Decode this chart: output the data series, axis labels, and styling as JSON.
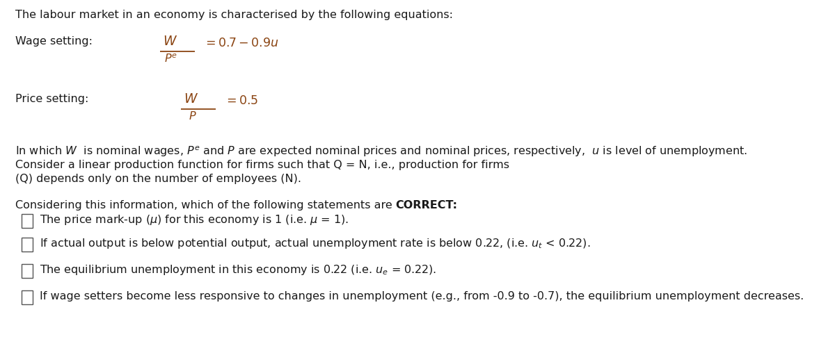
{
  "figsize": [
    12.0,
    4.98
  ],
  "dpi": 100,
  "bg_color": "#ffffff",
  "text_color": "#1a1a1a",
  "eq_color": "#8B4513",
  "font_size": 11.5,
  "title": "The labour market in an economy is characterised by the following equations:",
  "wage_label": "Wage setting:",
  "price_label": "Price setting:",
  "exp1": "In which $W$  is nominal wages, $P^e$ and $P$ are expected nominal prices and nominal prices, respectively,  $u$ is level of unemployment.",
  "exp2a": "Consider a linear production function for firms such that Q = N, i.e., production for firms",
  "exp2b": "(Q) depends only on the number of employees (N).",
  "q_normal": "Considering this information, which of the following statements are ",
  "q_bold": "CORRECT",
  "q_end": ":",
  "opt1": "The price mark-up ($\\mu$) for this economy is 1 (i.e. $\\mu$ = 1).",
  "opt2": "If actual output is below potential output, actual unemployment rate is below 0.22, (i.e. $u_t$ < 0.22).",
  "opt3": "The equilibrium unemployment in this economy is 0.22 (i.e. $u_e$ = 0.22).",
  "opt4": "If wage setters become less responsive to changes in unemployment (e.g., from -0.9 to -0.7), the equilibrium unemployment decreases.",
  "wage_frac_num": "$W$",
  "wage_frac_den": "$P^e$",
  "wage_eq": "$= 0.7-0.9u$",
  "price_frac_num": "$W$",
  "price_frac_den": "$P$",
  "price_eq": "$= 0.5$"
}
